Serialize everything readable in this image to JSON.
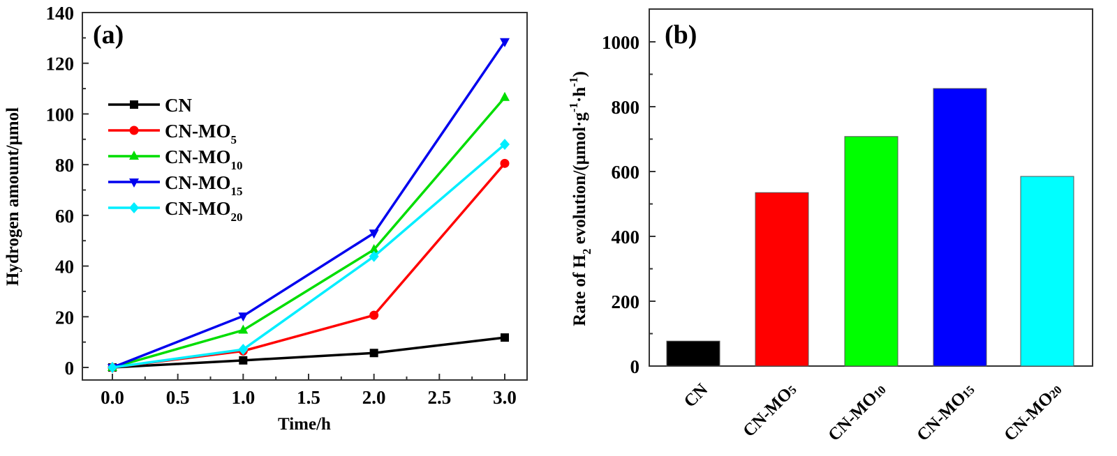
{
  "chart_data": [
    {
      "type": "line",
      "panel_label": "(a)",
      "title": "",
      "xlabel": "Time/h",
      "ylabel": "Hydrogen amount/μmol",
      "xlim": [
        -0.2,
        3.3
      ],
      "ylim": [
        -5,
        140
      ],
      "xticks": [
        "0.0",
        "0.5",
        "1.0",
        "1.5",
        "2.0",
        "2.5",
        "3.0"
      ],
      "xtick_values": [
        0,
        0.5,
        1.0,
        1.5,
        2.0,
        2.5,
        3.0
      ],
      "yticks": [
        "0",
        "20",
        "40",
        "60",
        "80",
        "100",
        "120",
        "140"
      ],
      "ytick_values": [
        0,
        20,
        40,
        60,
        80,
        100,
        120,
        140
      ],
      "grid": false,
      "legend_position": "upper-left",
      "x": [
        0,
        1,
        2,
        3
      ],
      "series": [
        {
          "name": "CN",
          "base": "CN",
          "sub": "",
          "color": "#000000",
          "marker": "square",
          "values": [
            0,
            2.8,
            5.7,
            11.8
          ]
        },
        {
          "name": "CN-MO5",
          "base": "CN-MO",
          "sub": "5",
          "color": "#ff0000",
          "marker": "circle",
          "values": [
            0,
            6.5,
            20.6,
            80.5
          ]
        },
        {
          "name": "CN-MO10",
          "base": "CN-MO",
          "sub": "10",
          "color": "#00dd00",
          "marker": "triangle-up",
          "values": [
            0,
            14.7,
            46.5,
            106.5
          ]
        },
        {
          "name": "CN-MO15",
          "base": "CN-MO",
          "sub": "15",
          "color": "#0000ee",
          "marker": "triangle-down",
          "values": [
            0,
            20.3,
            53.0,
            128.5
          ]
        },
        {
          "name": "CN-MO20",
          "base": "CN-MO",
          "sub": "20",
          "color": "#00eeff",
          "marker": "diamond",
          "values": [
            0,
            7.1,
            43.8,
            88.0
          ]
        }
      ]
    },
    {
      "type": "bar",
      "panel_label": "(b)",
      "title": "",
      "xlabel": "",
      "ylabel_parts": {
        "pre": "Rate of H",
        "sub": "2",
        "mid": " evolution/(μmol·g",
        "sup1": "-1",
        "dot": "·h",
        "sup2": "-1",
        "post": ")"
      },
      "ylabel": "Rate of H2 evolution/(μmol·g-1·h-1)",
      "ylim": [
        0,
        1100
      ],
      "yticks": [
        "0",
        "200",
        "400",
        "600",
        "800",
        "1000"
      ],
      "ytick_values": [
        0,
        200,
        400,
        600,
        800,
        1000
      ],
      "grid": false,
      "categories": [
        "CN",
        "CN-MO5",
        "CN-MO10",
        "CN-MO15",
        "CN-MO20"
      ],
      "category_parts": [
        {
          "base": "CN",
          "sub": ""
        },
        {
          "base": "CN-MO",
          "sub": "5"
        },
        {
          "base": "CN-MO",
          "sub": "10"
        },
        {
          "base": "CN-MO",
          "sub": "15"
        },
        {
          "base": "CN-MO",
          "sub": "20"
        }
      ],
      "values": [
        77,
        535,
        708,
        856,
        585
      ],
      "colors": [
        "#000000",
        "#ff0000",
        "#00ff00",
        "#0000ff",
        "#00ffff"
      ]
    }
  ]
}
